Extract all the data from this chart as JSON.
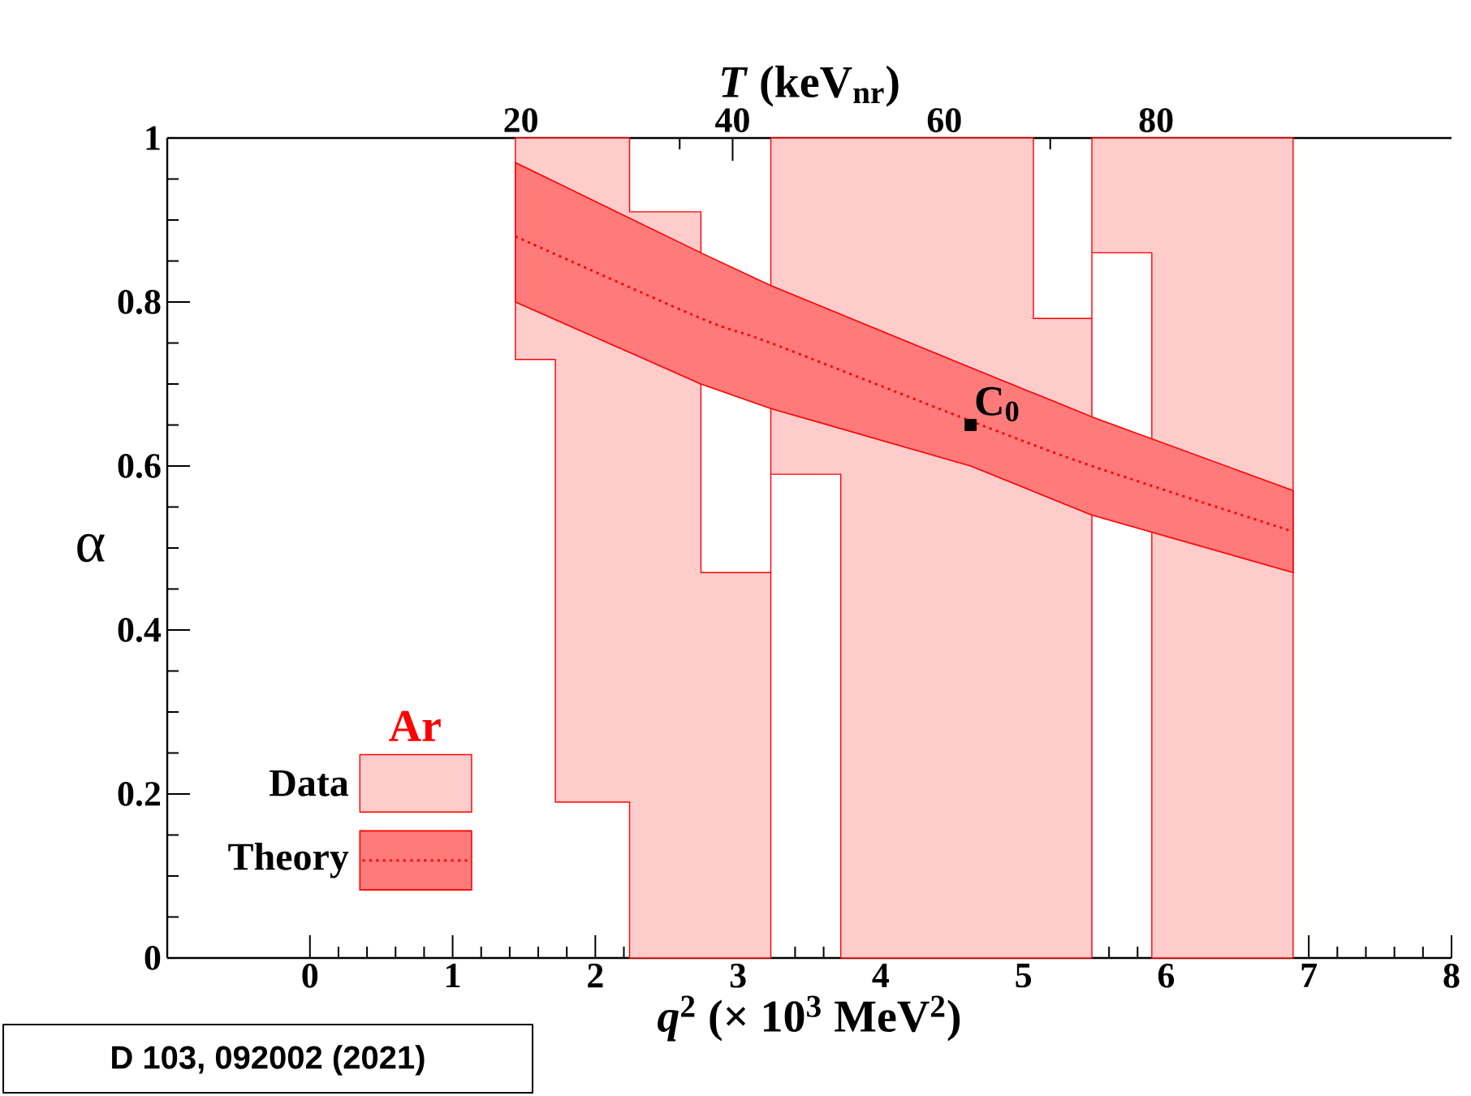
{
  "chart_data": {
    "type": "area",
    "xlabel": "*q*$^{2}$ (× 10$^{3}$ MeV$^{2}$)",
    "ylabel": "α",
    "x2label": "*T* (keV$_{nr}$)",
    "legend_title": "Ar",
    "legend": "bottom left",
    "xlim": [
      -1,
      8
    ],
    "xticks": [
      0,
      1,
      2,
      3,
      4,
      5,
      6,
      7,
      8
    ],
    "ylim": [
      0,
      1
    ],
    "yticks": [
      0,
      0.2,
      0.4,
      0.6,
      0.8,
      1
    ],
    "x2lim": [
      -13.4,
      107.9
    ],
    "x2ticks": [
      20,
      40,
      60,
      80
    ],
    "series": [
      {
        "name": "Data",
        "type": "area",
        "color": "#ff0000",
        "x": [
          1.44,
          1.72,
          1.72,
          2.24,
          2.24,
          2.74,
          2.74,
          3.23,
          3.23,
          3.72,
          3.72,
          5.07,
          5.07,
          5.48,
          5.48,
          5.9,
          5.9,
          6.89
        ],
        "values": [
          null,
          null,
          null,
          null,
          null,
          null,
          null,
          null,
          null,
          null,
          null,
          null,
          null,
          null,
          null,
          null,
          null,
          null
        ],
        "lower": [
          0.73,
          0.73,
          0.19,
          0.19,
          0,
          0,
          0,
          0,
          0.59,
          0.59,
          0,
          0,
          0,
          0,
          0.86,
          0.86,
          0,
          0
        ],
        "upper": [
          1,
          1,
          1,
          1,
          0.91,
          0.91,
          0.47,
          0.47,
          1,
          1,
          1,
          1,
          0.78,
          0.78,
          1,
          1,
          1,
          1
        ]
      },
      {
        "name": "Theory",
        "type": "line",
        "color": "#ff0000",
        "line_style": "dotted",
        "x": [
          1.44,
          2.74,
          3.23,
          4.63,
          5.48,
          6.89
        ],
        "values": [
          0.88,
          0.78,
          0.75,
          0.655,
          0.6,
          0.52
        ],
        "lower": [
          0.8,
          0.7,
          0.67,
          0.6,
          0.54,
          0.47
        ],
        "upper": [
          0.97,
          0.86,
          0.82,
          0.72,
          0.66,
          0.57
        ]
      },
      {
        "type": "scatter",
        "color": "#000000",
        "marker": "square",
        "x": [
          4.63
        ],
        "values": [
          0.65
        ]
      }
    ],
    "annotations": [
      {
        "text": "C$_{0}$",
        "x": 4.63,
        "y": 0.65
      },
      "D 103, 092002 (2021)"
    ]
  }
}
